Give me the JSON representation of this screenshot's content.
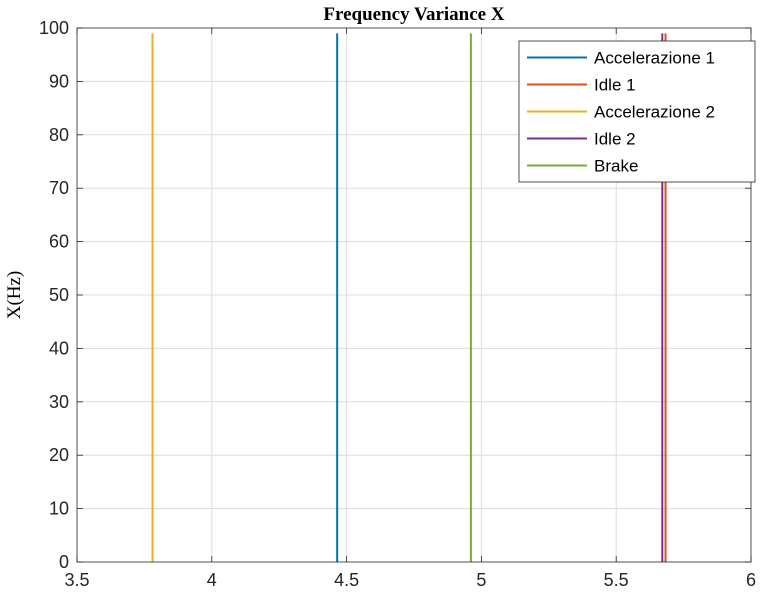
{
  "chart_data": {
    "type": "line",
    "title": "Frequency Variance X",
    "xlabel": "",
    "ylabel": "X(Hz)",
    "xlim": [
      3.5,
      6
    ],
    "ylim": [
      0,
      100
    ],
    "xticks": [
      3.5,
      4,
      4.5,
      5,
      5.5,
      6
    ],
    "xtick_labels": [
      "3.5",
      "4",
      "4.5",
      "5",
      "5.5",
      "6"
    ],
    "yticks": [
      0,
      10,
      20,
      30,
      40,
      50,
      60,
      70,
      80,
      90,
      100
    ],
    "ytick_labels": [
      "0",
      "10",
      "20",
      "30",
      "40",
      "50",
      "60",
      "70",
      "80",
      "90",
      "100"
    ],
    "grid": true,
    "legend_position": "top-right",
    "series": [
      {
        "name": "Accelerazione 1",
        "color": "#0072BD",
        "x": [
          4.465,
          4.465
        ],
        "y": [
          0,
          99
        ]
      },
      {
        "name": "Idle 1",
        "color": "#D95319",
        "x": [
          5.683,
          5.683
        ],
        "y": [
          0,
          99
        ]
      },
      {
        "name": "Accelerazione 2",
        "color": "#EDB120",
        "x": [
          3.78,
          3.78
        ],
        "y": [
          0,
          99
        ]
      },
      {
        "name": "Idle 2",
        "color": "#7E2F8E",
        "x": [
          5.671,
          5.671
        ],
        "y": [
          0,
          99
        ]
      },
      {
        "name": "Brake",
        "color": "#77AC30",
        "x": [
          4.961,
          4.961
        ],
        "y": [
          0,
          99
        ]
      }
    ]
  }
}
